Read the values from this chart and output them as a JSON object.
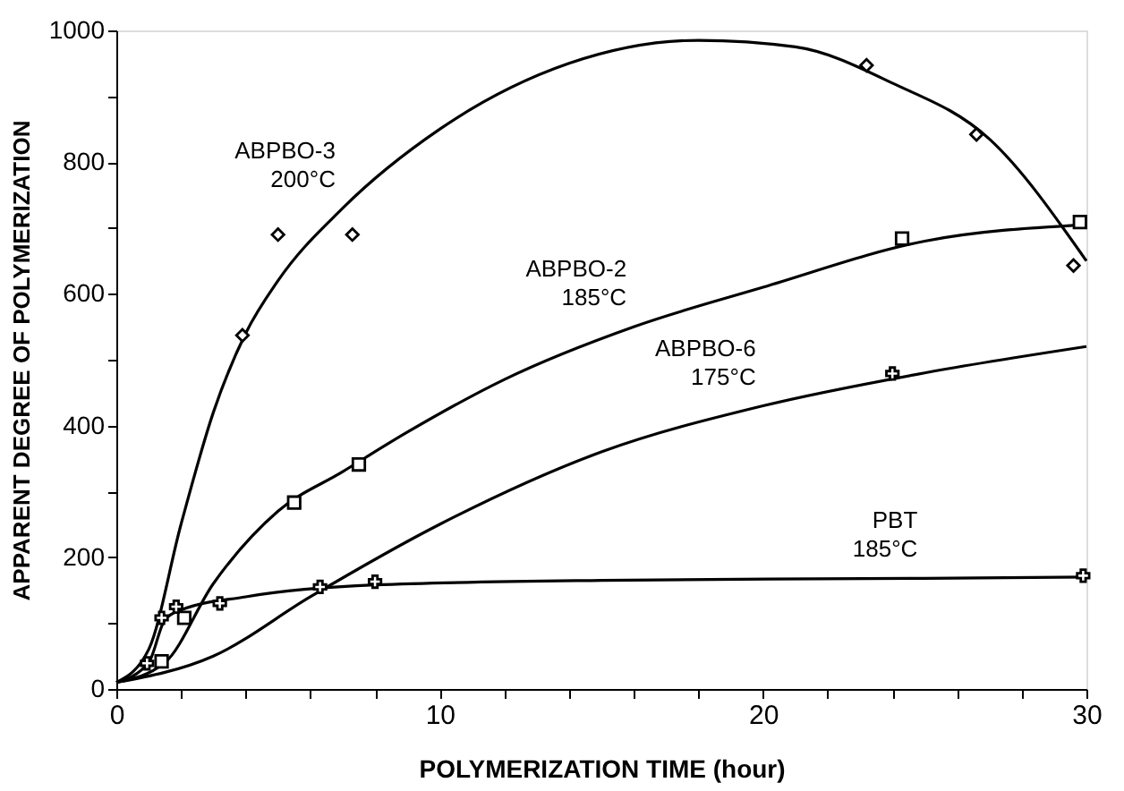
{
  "chart_data": {
    "type": "line",
    "xlabel": "POLYMERIZATION TIME (hour)",
    "ylabel": "APPARENT DEGREE OF POLYMERIZATION",
    "xlim": [
      0,
      30
    ],
    "ylim": [
      0,
      1000
    ],
    "xticks": [
      0,
      {
        "value": 2,
        "label": null
      },
      {
        "value": 4,
        "label": null
      },
      {
        "value": 6,
        "label": null
      },
      {
        "value": 8,
        "label": null
      },
      10,
      {
        "value": 12,
        "label": null
      },
      {
        "value": 14,
        "label": null
      },
      {
        "value": 16,
        "label": null
      },
      {
        "value": 18,
        "label": null
      },
      20,
      {
        "value": 22,
        "label": null
      },
      {
        "value": 24,
        "label": null
      },
      {
        "value": 26,
        "label": null
      },
      {
        "value": 28,
        "label": null
      },
      30
    ],
    "yticks": [
      0,
      {
        "value": 100,
        "label": null
      },
      200,
      {
        "value": 300,
        "label": null
      },
      400,
      {
        "value": 500,
        "label": null
      },
      600,
      {
        "value": 700,
        "label": null
      },
      800,
      {
        "value": 900,
        "label": null
      },
      1000
    ],
    "grid": false,
    "line_style": "solid",
    "series": [
      {
        "type": "line",
        "color": "#000000",
        "x": [
          0,
          1,
          2,
          3,
          4,
          5,
          7,
          10,
          14,
          18,
          21,
          24,
          27,
          30
        ],
        "values": [
          10,
          60,
          250,
          420,
          540,
          620,
          730,
          850,
          950,
          985,
          975,
          920,
          835,
          650
        ]
      },
      {
        "type": "scatter",
        "marker": "diamond",
        "color": "#000000",
        "x": [
          3.9,
          5.0,
          7.3,
          23.2,
          26.6,
          29.6
        ],
        "values": [
          537,
          690,
          690,
          947,
          842,
          643
        ]
      },
      {
        "type": "line",
        "color": "#000000",
        "x": [
          0,
          1.5,
          3,
          5,
          7,
          9,
          12,
          16,
          20,
          25,
          30
        ],
        "values": [
          10,
          40,
          160,
          270,
          330,
          390,
          470,
          550,
          610,
          680,
          705
        ]
      },
      {
        "type": "scatter",
        "marker": "square",
        "color": "#000000",
        "x": [
          1.4,
          2.1,
          5.5,
          7.5,
          24.3,
          29.8
        ],
        "values": [
          42,
          108,
          283,
          341,
          684,
          709
        ]
      },
      {
        "type": "line",
        "color": "#000000",
        "x": [
          0,
          3,
          6,
          10,
          15,
          20,
          25,
          30
        ],
        "values": [
          10,
          50,
          140,
          250,
          360,
          430,
          480,
          520
        ]
      },
      {
        "type": "scatter",
        "marker": "cross",
        "color": "#000000",
        "x": [
          6.3,
          24.0
        ],
        "values": [
          155,
          479
        ]
      },
      {
        "type": "line",
        "color": "#000000",
        "x": [
          0,
          1,
          1.5,
          2,
          4,
          8,
          15,
          25,
          30
        ],
        "values": [
          10,
          40,
          105,
          120,
          140,
          158,
          165,
          168,
          170
        ]
      },
      {
        "type": "scatter",
        "marker": "cross",
        "color": "#000000",
        "x": [
          0.95,
          1.4,
          1.85,
          3.2,
          8.0,
          29.9
        ],
        "values": [
          39,
          108,
          125,
          130,
          163,
          172
        ]
      }
    ],
    "annotations": [
      {
        "text": "ABPBO-3\n200°C",
        "x": 7,
        "y": 730
      },
      {
        "text": "ABPBO-2\n185°C",
        "x": 16,
        "y": 550
      },
      {
        "text": "ABPBO-6\n175°C",
        "x": 20,
        "y": 430
      },
      {
        "text": "PBT\n185°C",
        "x": 25,
        "y": 168
      }
    ]
  }
}
